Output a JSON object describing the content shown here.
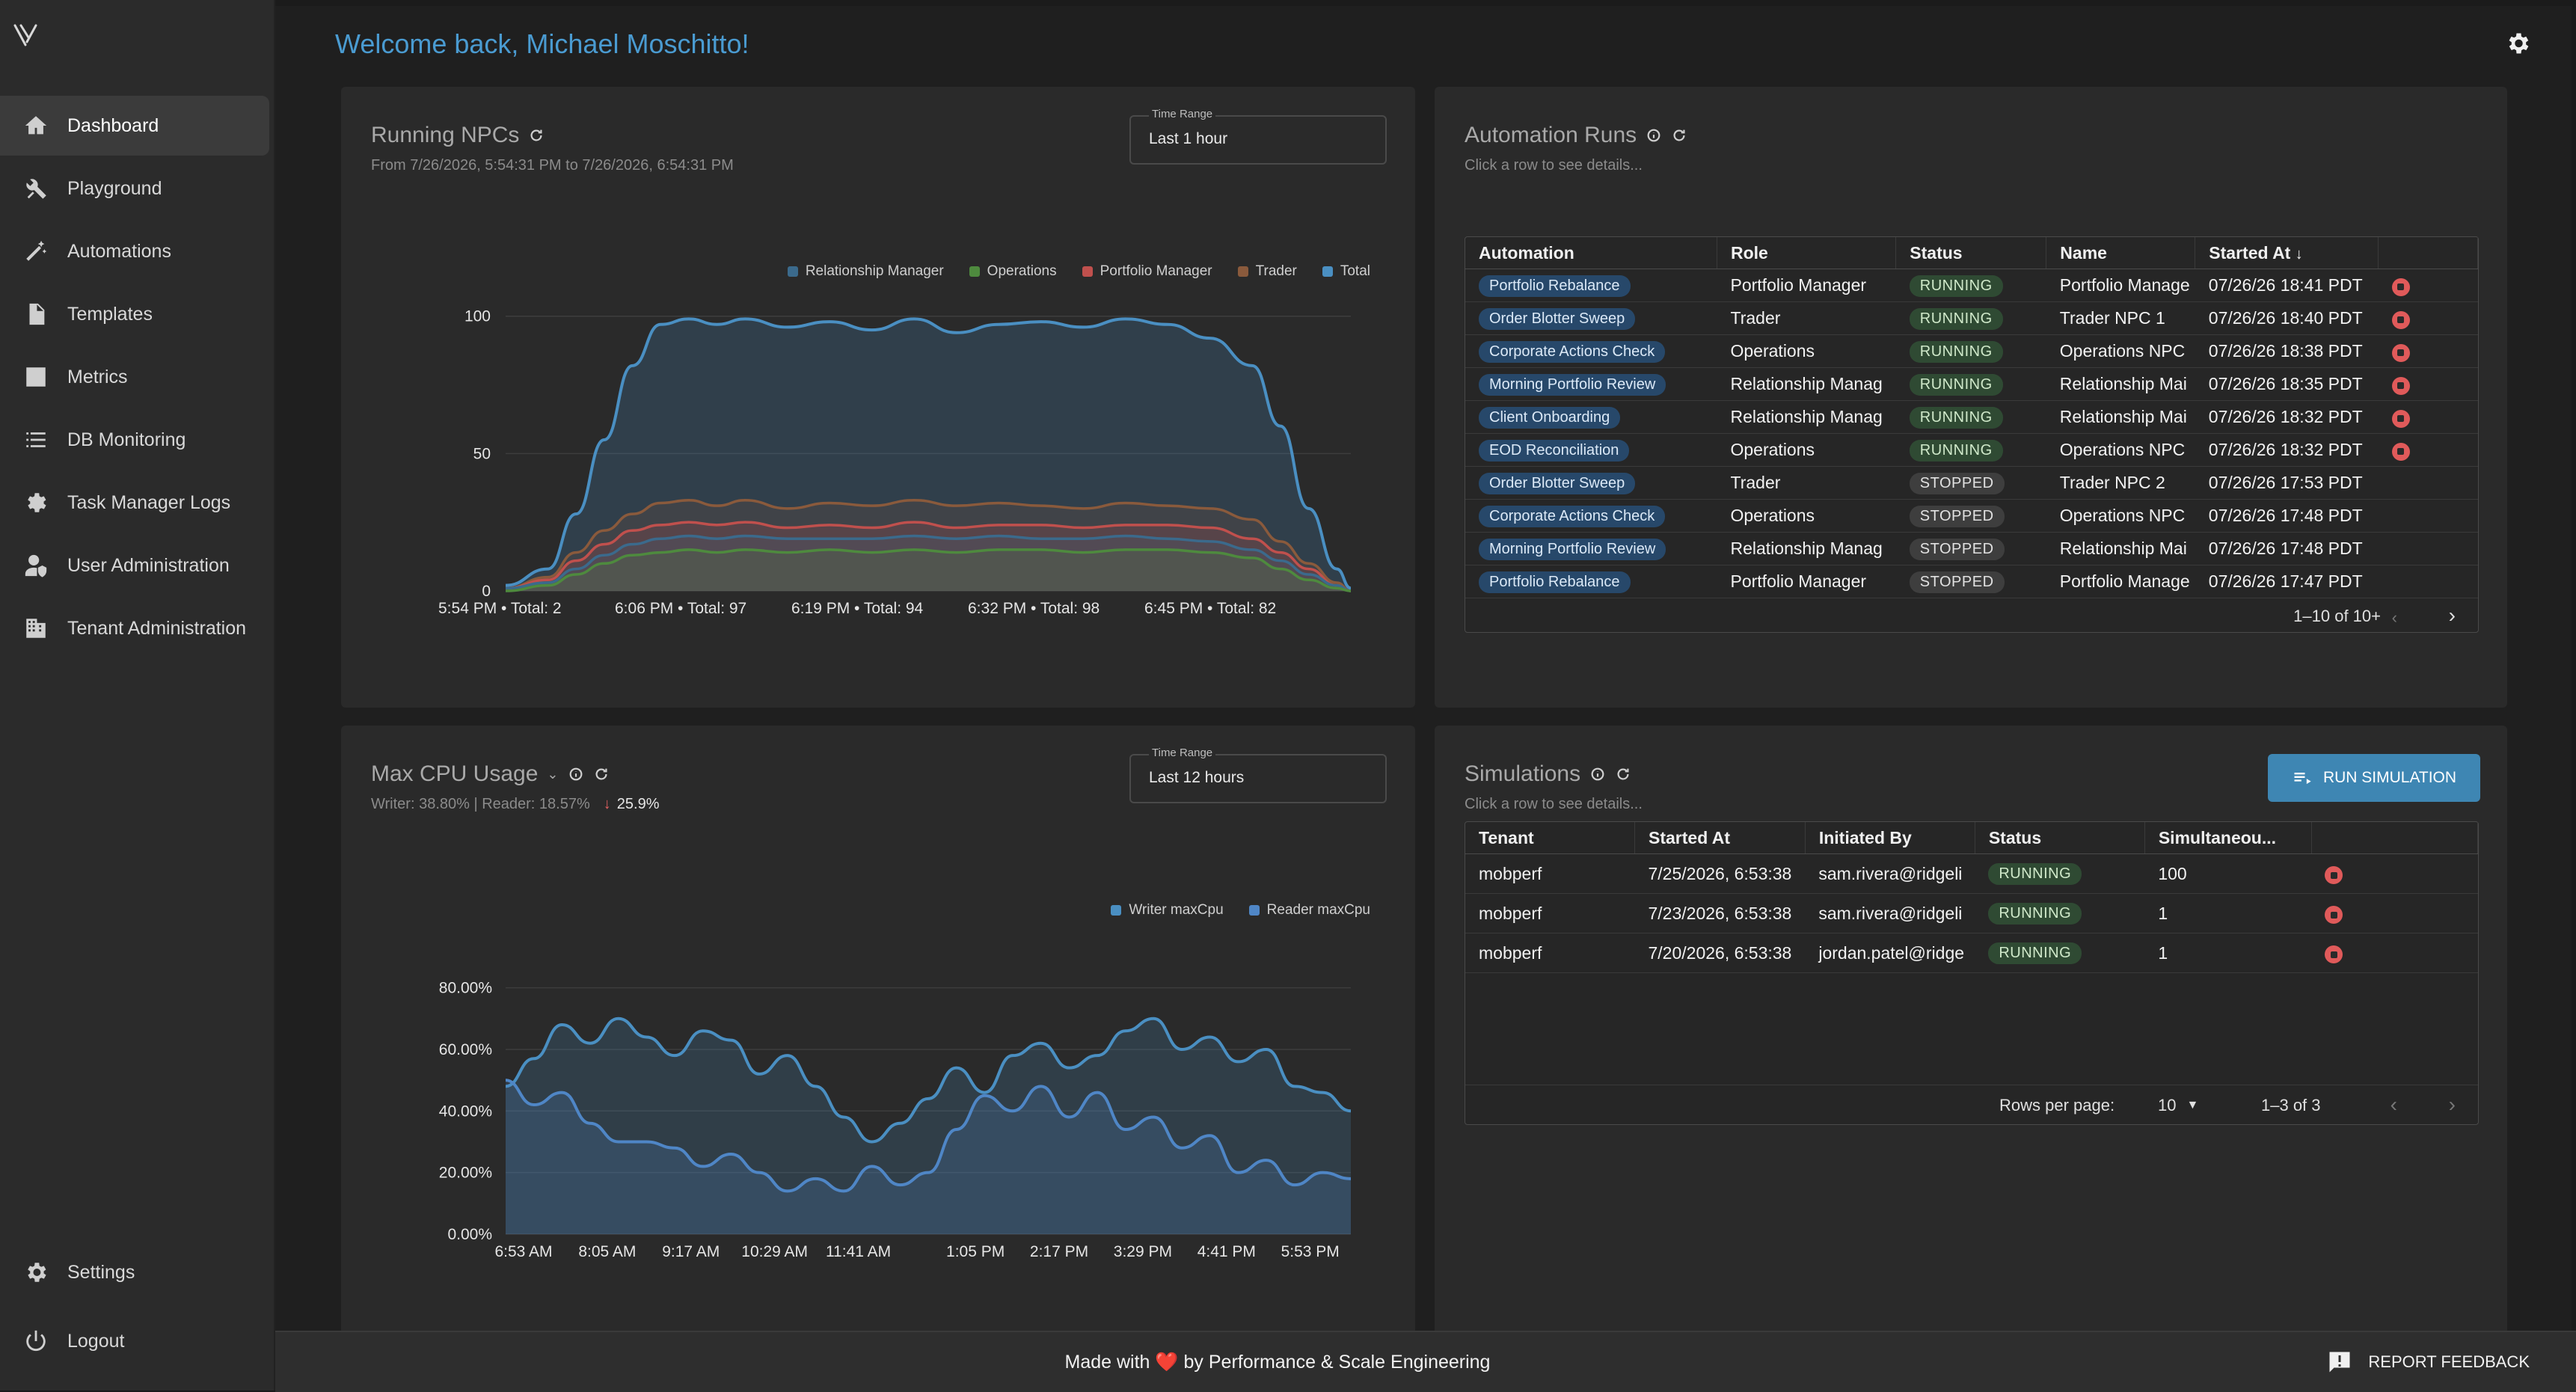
{
  "header": {
    "welcome": "Welcome back, Michael Moschitto!"
  },
  "sidebar": {
    "items": [
      {
        "label": "Dashboard",
        "icon": "home-icon",
        "active": true
      },
      {
        "label": "Playground",
        "icon": "tools-icon"
      },
      {
        "label": "Automations",
        "icon": "magic-wand-icon"
      },
      {
        "label": "Templates",
        "icon": "document-icon"
      },
      {
        "label": "Metrics",
        "icon": "bar-chart-icon"
      },
      {
        "label": "DB Monitoring",
        "icon": "list-icon"
      },
      {
        "label": "Task Manager Logs",
        "icon": "gear-bug-icon"
      },
      {
        "label": "User Administration",
        "icon": "user-shield-icon"
      },
      {
        "label": "Tenant Administration",
        "icon": "building-icon"
      }
    ],
    "settings_label": "Settings",
    "logout_label": "Logout"
  },
  "running_npcs": {
    "title": "Running NPCs",
    "subtitle": "From 7/26/2026, 5:54:31 PM to 7/26/2026, 6:54:31 PM",
    "time_range_label": "Time Range",
    "time_range_value": "Last 1 hour"
  },
  "max_cpu": {
    "title": "Max CPU Usage",
    "subtitle": "Writer: 38.80% | Reader: 18.57%",
    "delta": "25.9%",
    "time_range_label": "Time Range",
    "time_range_value": "Last 12 hours"
  },
  "automation_runs": {
    "title": "Automation Runs",
    "subtitle": "Click a row to see details...",
    "columns": [
      "Automation",
      "Role",
      "Status",
      "Name",
      "Started At"
    ],
    "rows": [
      {
        "automation": "Portfolio Rebalance",
        "role": "Portfolio Manager",
        "status": "RUNNING",
        "name": "Portfolio Manage",
        "started": "07/26/26 18:41 PDT",
        "stoppable": true
      },
      {
        "automation": "Order Blotter Sweep",
        "role": "Trader",
        "status": "RUNNING",
        "name": "Trader NPC 1",
        "started": "07/26/26 18:40 PDT",
        "stoppable": true
      },
      {
        "automation": "Corporate Actions Check",
        "role": "Operations",
        "status": "RUNNING",
        "name": "Operations NPC",
        "started": "07/26/26 18:38 PDT",
        "stoppable": true
      },
      {
        "automation": "Morning Portfolio Review",
        "role": "Relationship Manag",
        "status": "RUNNING",
        "name": "Relationship Mai",
        "started": "07/26/26 18:35 PDT",
        "stoppable": true
      },
      {
        "automation": "Client Onboarding",
        "role": "Relationship Manag",
        "status": "RUNNING",
        "name": "Relationship Mai",
        "started": "07/26/26 18:32 PDT",
        "stoppable": true
      },
      {
        "automation": "EOD Reconciliation",
        "role": "Operations",
        "status": "RUNNING",
        "name": "Operations NPC",
        "started": "07/26/26 18:32 PDT",
        "stoppable": true
      },
      {
        "automation": "Order Blotter Sweep",
        "role": "Trader",
        "status": "STOPPED",
        "name": "Trader NPC 2",
        "started": "07/26/26 17:53 PDT",
        "stoppable": false
      },
      {
        "automation": "Corporate Actions Check",
        "role": "Operations",
        "status": "STOPPED",
        "name": "Operations NPC",
        "started": "07/26/26 17:48 PDT",
        "stoppable": false
      },
      {
        "automation": "Morning Portfolio Review",
        "role": "Relationship Manag",
        "status": "STOPPED",
        "name": "Relationship Mai",
        "started": "07/26/26 17:48 PDT",
        "stoppable": false
      },
      {
        "automation": "Portfolio Rebalance",
        "role": "Portfolio Manager",
        "status": "STOPPED",
        "name": "Portfolio Manage",
        "started": "07/26/26 17:47 PDT",
        "stoppable": false
      }
    ],
    "pagination": "1–10 of 10+"
  },
  "simulations": {
    "title": "Simulations",
    "subtitle": "Click a row to see details...",
    "run_button": "RUN SIMULATION",
    "columns": [
      "Tenant",
      "Started At",
      "Initiated By",
      "Status",
      "Simultaneou..."
    ],
    "rows": [
      {
        "tenant": "mobperf",
        "started": "7/25/2026, 6:53:38",
        "initiated_by": "sam.rivera@ridgeli",
        "status": "RUNNING",
        "simultaneous": "100"
      },
      {
        "tenant": "mobperf",
        "started": "7/23/2026, 6:53:38",
        "initiated_by": "sam.rivera@ridgeli",
        "status": "RUNNING",
        "simultaneous": "1"
      },
      {
        "tenant": "mobperf",
        "started": "7/20/2026, 6:53:38",
        "initiated_by": "jordan.patel@ridge",
        "status": "RUNNING",
        "simultaneous": "1"
      }
    ],
    "rows_per_page_label": "Rows per page:",
    "rows_per_page_value": "10",
    "pagination": "1–3 of 3"
  },
  "footer": {
    "made_with": "Made with",
    "heart": "❤️",
    "by": "by Performance & Scale Engineering",
    "feedback": "REPORT FEEDBACK"
  },
  "colors": {
    "accent": "#4a9bd1",
    "relationship_manager": "#3b6a8c",
    "operations": "#4e8a3e",
    "portfolio_manager": "#c0504d",
    "trader": "#8a5a3c",
    "total": "#4a8fc2",
    "writer": "#4a8fc2",
    "reader": "#4f86c6"
  },
  "chart_data": [
    {
      "type": "area",
      "legend": [
        "Relationship Manager",
        "Operations",
        "Portfolio Manager",
        "Trader",
        "Total"
      ],
      "legend_position": "top-right",
      "x_tick_labels": [
        "5:54 PM • Total: 2",
        "6:06 PM • Total: 97",
        "6:19 PM • Total: 94",
        "6:32 PM • Total: 98",
        "6:45 PM • Total: 82"
      ],
      "y_ticks": [
        0,
        50,
        100
      ],
      "ylim": [
        0,
        110
      ],
      "grid": true,
      "x_minutes": [
        0,
        3,
        5,
        7,
        9,
        11,
        13,
        15,
        17,
        20,
        23,
        26,
        29,
        32,
        35,
        38,
        41,
        44,
        47,
        50,
        53,
        55,
        57,
        59,
        60
      ],
      "series": [
        {
          "name": "Total",
          "values": [
            2,
            8,
            28,
            55,
            82,
            97,
            99,
            97,
            99,
            96,
            98,
            95,
            99,
            94,
            97,
            98,
            96,
            99,
            97,
            92,
            82,
            60,
            30,
            8,
            1
          ]
        },
        {
          "name": "Trader",
          "values": [
            1,
            5,
            14,
            22,
            28,
            32,
            33,
            31,
            33,
            30,
            32,
            31,
            33,
            31,
            32,
            31,
            30,
            32,
            31,
            30,
            26,
            18,
            10,
            3,
            0
          ]
        },
        {
          "name": "Portfolio Manager",
          "values": [
            1,
            4,
            11,
            17,
            22,
            24,
            25,
            24,
            25,
            23,
            24,
            23,
            25,
            23,
            24,
            24,
            23,
            24,
            24,
            23,
            19,
            14,
            8,
            2,
            0
          ]
        },
        {
          "name": "Relationship Manager",
          "values": [
            1,
            3,
            8,
            13,
            17,
            19,
            20,
            19,
            20,
            19,
            19,
            19,
            20,
            19,
            20,
            19,
            19,
            20,
            19,
            18,
            15,
            11,
            6,
            2,
            0
          ]
        },
        {
          "name": "Operations",
          "values": [
            0,
            2,
            6,
            10,
            13,
            14,
            15,
            14,
            15,
            14,
            15,
            14,
            15,
            14,
            15,
            15,
            14,
            15,
            15,
            14,
            12,
            8,
            4,
            1,
            0
          ]
        }
      ]
    },
    {
      "type": "area",
      "legend": [
        "Writer maxCpu",
        "Reader maxCpu"
      ],
      "legend_position": "top-right",
      "x_tick_labels": [
        "6:53 AM",
        "8:05 AM",
        "9:17 AM",
        "10:29 AM",
        "11:41 AM",
        "1:05 PM",
        "2:17 PM",
        "3:29 PM",
        "4:41 PM",
        "5:53 PM"
      ],
      "y_tick_labels": [
        "0.00%",
        "20.00%",
        "40.00%",
        "60.00%",
        "80.00%"
      ],
      "ylim": [
        0,
        85
      ],
      "grid": true,
      "x_hours": [
        0,
        0.4,
        0.8,
        1.2,
        1.6,
        2.0,
        2.4,
        2.8,
        3.2,
        3.6,
        4.0,
        4.4,
        4.8,
        5.2,
        5.6,
        6.0,
        6.4,
        6.8,
        7.2,
        7.6,
        8.0,
        8.4,
        8.8,
        9.2,
        9.6,
        10.0,
        10.4,
        10.8,
        11.2,
        11.6,
        12.0
      ],
      "series": [
        {
          "name": "Writer maxCpu",
          "values": [
            48,
            57,
            68,
            62,
            70,
            64,
            58,
            66,
            63,
            52,
            58,
            48,
            38,
            30,
            36,
            44,
            54,
            46,
            58,
            62,
            54,
            58,
            66,
            70,
            60,
            64,
            56,
            60,
            48,
            46,
            40
          ]
        },
        {
          "name": "Reader maxCpu",
          "values": [
            50,
            42,
            46,
            36,
            30,
            30,
            28,
            22,
            26,
            20,
            14,
            18,
            14,
            22,
            16,
            20,
            34,
            45,
            40,
            48,
            38,
            46,
            34,
            38,
            28,
            32,
            20,
            24,
            16,
            20,
            18
          ]
        }
      ]
    }
  ]
}
